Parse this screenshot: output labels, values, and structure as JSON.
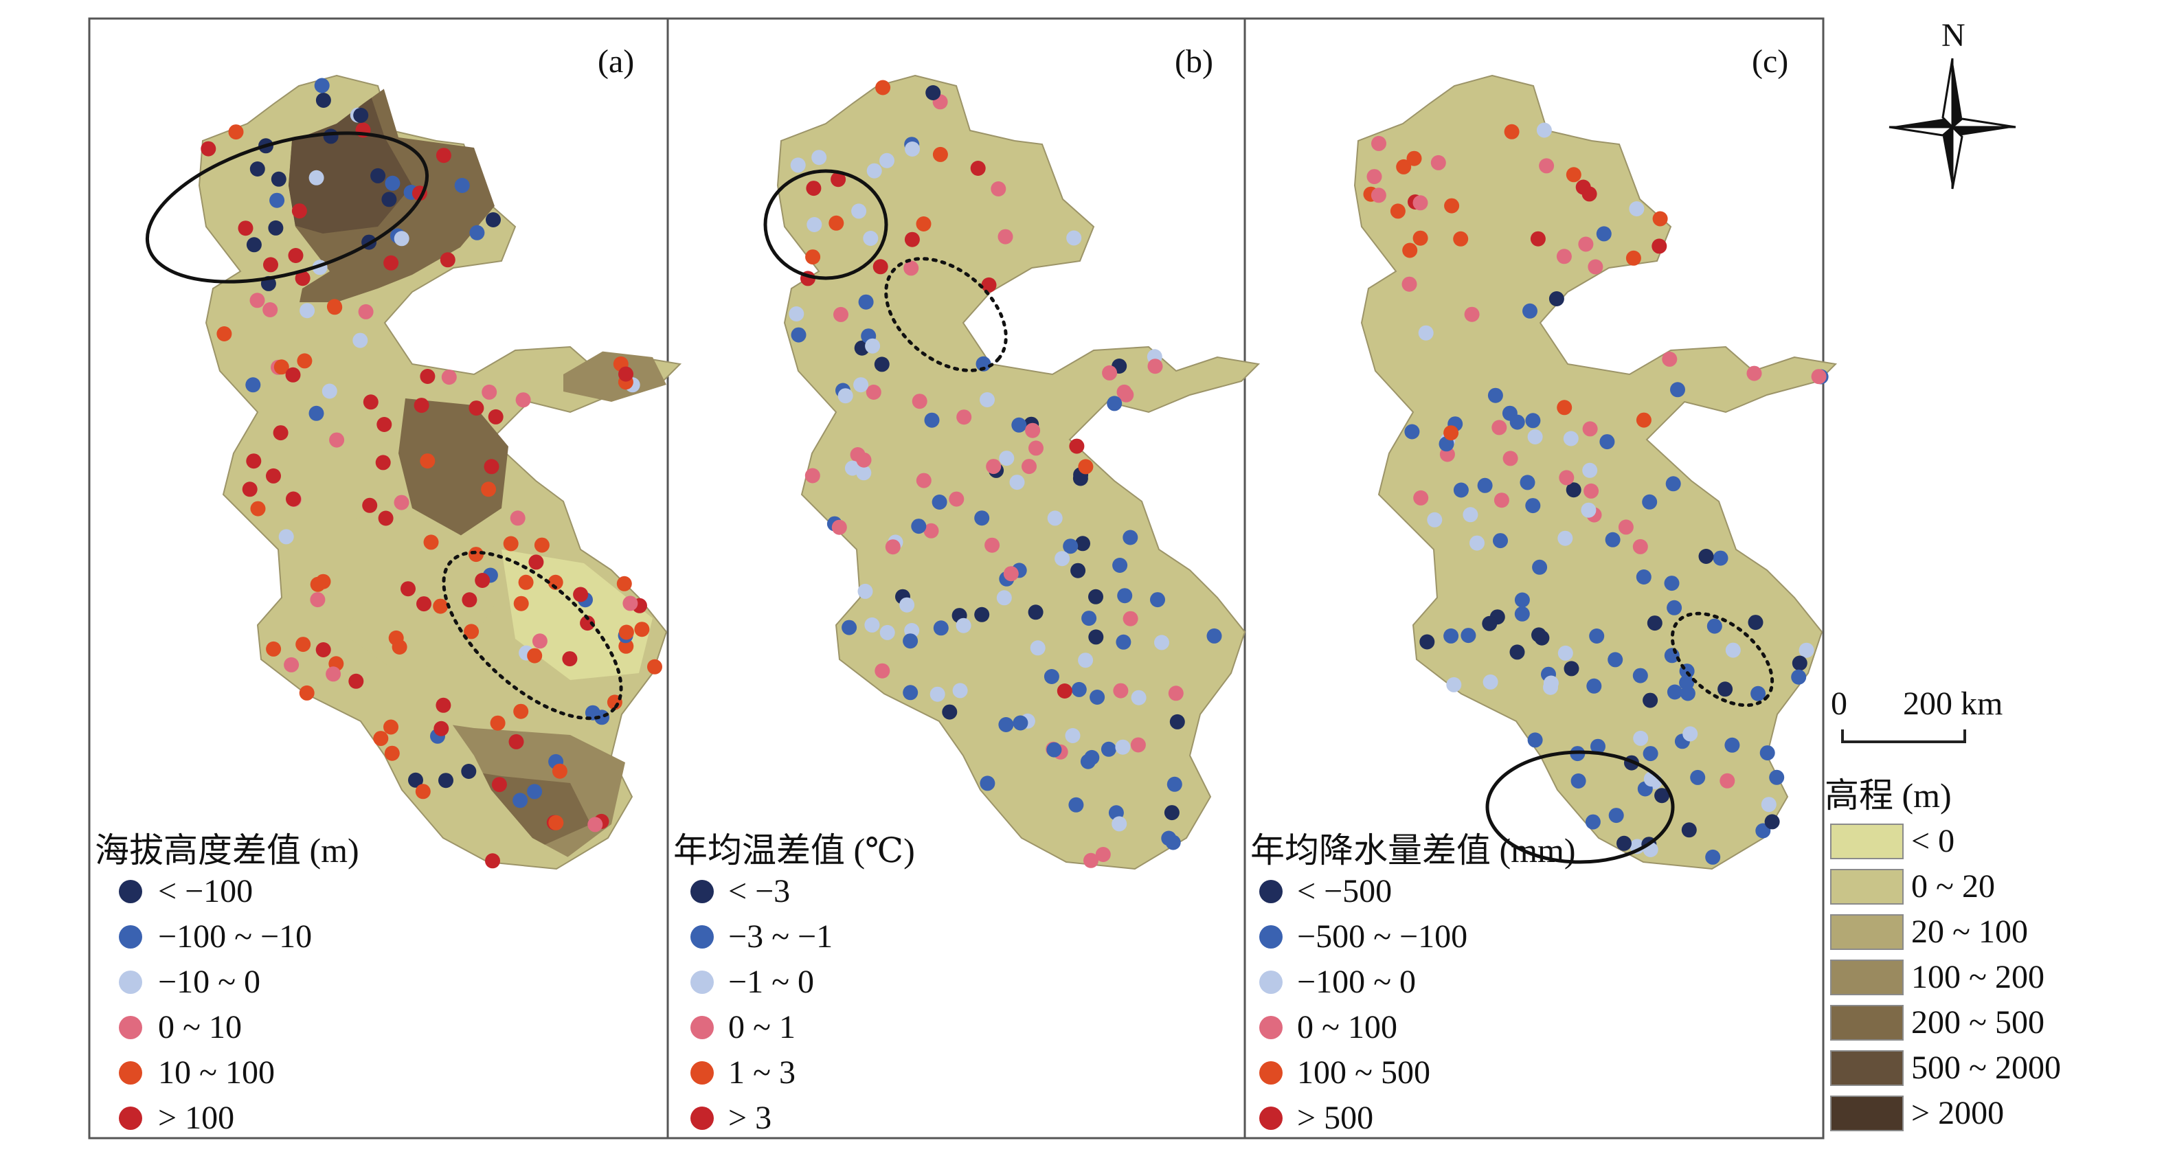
{
  "panels": [
    {
      "label": "(a)",
      "legend_title": "海拔高度差值 (m)",
      "legend": [
        {
          "text": "< −100",
          "color": "#1f2d5c"
        },
        {
          "text": "−100 ~ −10",
          "color": "#3a62b1"
        },
        {
          "text": "−10 ~ 0",
          "color": "#b9c9e8"
        },
        {
          "text": "0 ~ 10",
          "color": "#e06a7f"
        },
        {
          "text": "10 ~ 100",
          "color": "#e04b22"
        },
        {
          "text": "> 100",
          "color": "#c5242a"
        }
      ]
    },
    {
      "label": "(b)",
      "legend_title": "年均温差值 (℃)",
      "legend": [
        {
          "text": "< −3",
          "color": "#1f2d5c"
        },
        {
          "text": "−3 ~ −1",
          "color": "#3a62b1"
        },
        {
          "text": "−1 ~ 0",
          "color": "#b9c9e8"
        },
        {
          "text": "0 ~ 1",
          "color": "#e06a7f"
        },
        {
          "text": "1 ~ 3",
          "color": "#e04b22"
        },
        {
          "text": "> 3",
          "color": "#c5242a"
        }
      ]
    },
    {
      "label": "(c)",
      "legend_title": "年均降水量差值 (mm)",
      "legend": [
        {
          "text": "< −500",
          "color": "#1f2d5c"
        },
        {
          "text": "−500 ~ −100",
          "color": "#3a62b1"
        },
        {
          "text": "−100 ~ 0",
          "color": "#b9c9e8"
        },
        {
          "text": "0 ~ 100",
          "color": "#e06a7f"
        },
        {
          "text": "100 ~ 500",
          "color": "#e04b22"
        },
        {
          "text": "> 500",
          "color": "#c5242a"
        }
      ]
    }
  ],
  "north_arrow": {
    "label": "N",
    "icon": "north-arrow-icon"
  },
  "scale_bar": {
    "zero": "0",
    "end": "200 km"
  },
  "elevation_legend": {
    "title": "高程 (m)",
    "classes": [
      {
        "text": "< 0",
        "color": "#dcdc9a"
      },
      {
        "text": "0 ~ 20",
        "color": "#c9c489"
      },
      {
        "text": "20 ~ 100",
        "color": "#b3a874"
      },
      {
        "text": "100 ~ 200",
        "color": "#9a8a5f"
      },
      {
        "text": "200 ~ 500",
        "color": "#7e6a48"
      },
      {
        "text": "500 ~ 2000",
        "color": "#64503a"
      },
      {
        "text": "> 2000",
        "color": "#4b3829"
      }
    ]
  }
}
